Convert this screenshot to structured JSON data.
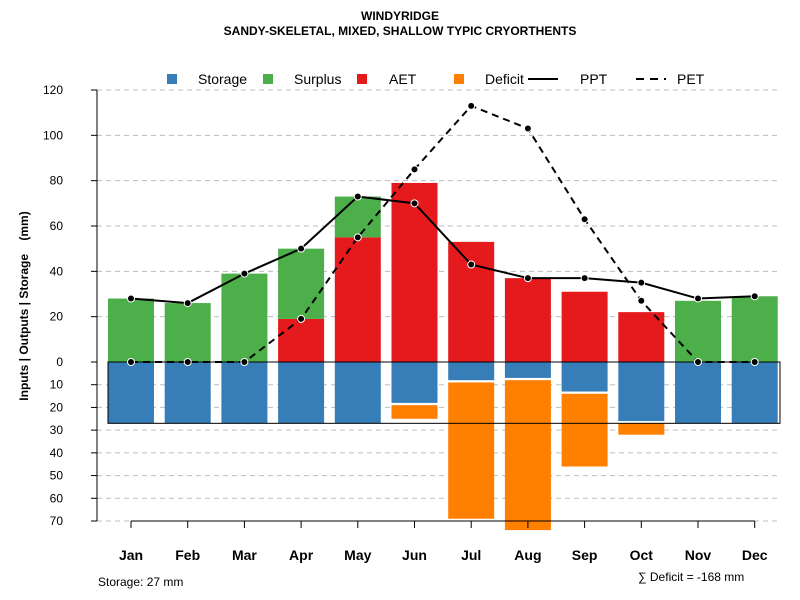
{
  "chart_data": {
    "type": "bar",
    "title": "WINDYRIDGE",
    "subtitle": "SANDY-SKELETAL, MIXED, SHALLOW TYPIC CRYORTHENTS",
    "ylabel": "Inputs | Outputs | Storage    (mm)",
    "categories": [
      "Jan",
      "Feb",
      "Mar",
      "Apr",
      "May",
      "Jun",
      "Jul",
      "Aug",
      "Sep",
      "Oct",
      "Nov",
      "Dec"
    ],
    "upper_axis": {
      "ylim": [
        0,
        120
      ],
      "ticks": [
        0,
        20,
        40,
        60,
        80,
        100,
        120
      ]
    },
    "lower_axis": {
      "ylim": [
        0,
        70
      ],
      "ticks": [
        10,
        20,
        30,
        40,
        50,
        60,
        70
      ]
    },
    "series": [
      {
        "name": "AET",
        "color": "#E41A1C",
        "values": [
          0,
          0,
          0,
          19,
          55,
          79,
          53,
          37,
          31,
          22,
          0,
          0
        ]
      },
      {
        "name": "Surplus",
        "color": "#4DAF4A",
        "values": [
          28,
          26,
          39,
          31,
          18,
          0,
          0,
          0,
          0,
          0,
          27,
          29
        ]
      },
      {
        "name": "Storage",
        "color": "#377EB8",
        "values": [
          27,
          27,
          27,
          27,
          27,
          18,
          8,
          7,
          13,
          26,
          27,
          27
        ]
      },
      {
        "name": "Deficit",
        "color": "#FF7F00",
        "values": [
          0,
          0,
          0,
          0,
          0,
          6,
          60,
          66,
          32,
          5,
          0,
          0
        ]
      },
      {
        "name": "PPT",
        "style": "solid",
        "values": [
          28,
          26,
          39,
          50,
          73,
          70,
          43,
          37,
          37,
          35,
          28,
          29
        ]
      },
      {
        "name": "PET",
        "style": "dashed",
        "values": [
          0,
          0,
          0,
          19,
          55,
          85,
          113,
          103,
          63,
          27,
          0,
          0
        ]
      }
    ],
    "legend": {
      "position": "top",
      "entries": [
        "Storage",
        "Surplus",
        "AET",
        "Deficit",
        "PPT",
        "PET"
      ]
    },
    "storage_note": "Storage: 27 mm",
    "deficit_note": "∑ Deficit = -168 mm",
    "grid": true
  }
}
